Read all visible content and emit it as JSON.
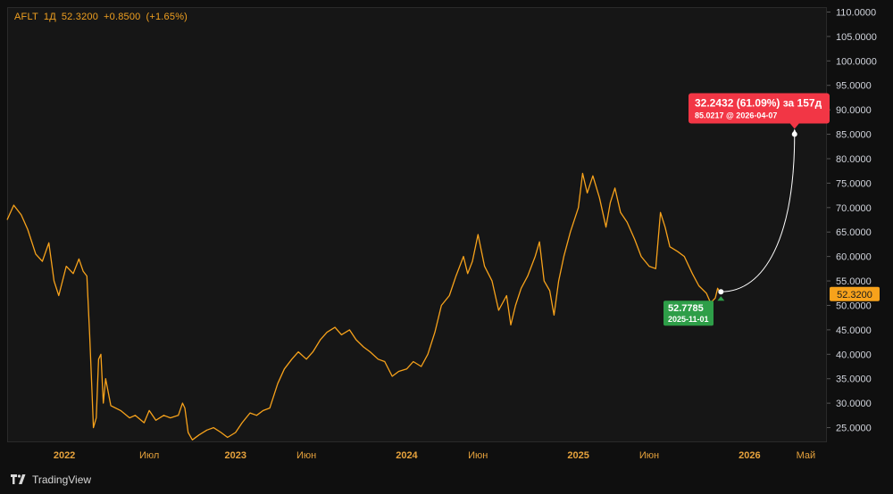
{
  "legend": {
    "symbol": "AFLT",
    "interval": "1Д",
    "last": "52.3200",
    "change": "+0.8500",
    "change_pct": "(+1.65%)"
  },
  "footer": {
    "brand": "TradingView"
  },
  "colors": {
    "background": "#161616",
    "price_line": "#f7a21b",
    "axis_text": "#d1d4dc",
    "time_text": "#e6a23c",
    "last_price_label": "#f7a21b",
    "start_label": "#2e9e48",
    "target_label": "#f23645",
    "projection_line": "#ffffff"
  },
  "chart_data": {
    "type": "line",
    "title": "",
    "series": [
      {
        "name": "AFLT",
        "points": [
          [
            "2021-09-01",
            67.5
          ],
          [
            "2021-09-15",
            70.5
          ],
          [
            "2021-10-01",
            68.5
          ],
          [
            "2021-10-15",
            65.5
          ],
          [
            "2021-11-01",
            60.5
          ],
          [
            "2021-11-15",
            59.0
          ],
          [
            "2021-11-29",
            62.8
          ],
          [
            "2021-12-10",
            55.0
          ],
          [
            "2021-12-20",
            52.0
          ],
          [
            "2022-01-05",
            58.0
          ],
          [
            "2022-01-20",
            56.5
          ],
          [
            "2022-02-01",
            59.5
          ],
          [
            "2022-02-10",
            57.0
          ],
          [
            "2022-02-18",
            56.0
          ],
          [
            "2022-02-24",
            44.0
          ],
          [
            "2022-03-01",
            32.0
          ],
          [
            "2022-03-04",
            25.0
          ],
          [
            "2022-03-10",
            27.0
          ],
          [
            "2022-03-15",
            39.0
          ],
          [
            "2022-03-20",
            40.0
          ],
          [
            "2022-03-25",
            30.0
          ],
          [
            "2022-03-30",
            35.0
          ],
          [
            "2022-04-10",
            29.5
          ],
          [
            "2022-05-01",
            28.5
          ],
          [
            "2022-05-20",
            27.0
          ],
          [
            "2022-06-01",
            27.5
          ],
          [
            "2022-06-20",
            26.0
          ],
          [
            "2022-07-01",
            28.5
          ],
          [
            "2022-07-15",
            26.5
          ],
          [
            "2022-08-01",
            27.5
          ],
          [
            "2022-08-15",
            27.0
          ],
          [
            "2022-09-01",
            27.5
          ],
          [
            "2022-09-10",
            30.0
          ],
          [
            "2022-09-15",
            29.0
          ],
          [
            "2022-09-22",
            24.0
          ],
          [
            "2022-10-01",
            22.5
          ],
          [
            "2022-10-15",
            23.5
          ],
          [
            "2022-11-01",
            24.5
          ],
          [
            "2022-11-15",
            25.0
          ],
          [
            "2022-12-01",
            24.0
          ],
          [
            "2022-12-15",
            23.0
          ],
          [
            "2023-01-01",
            24.0
          ],
          [
            "2023-01-15",
            26.0
          ],
          [
            "2023-02-01",
            28.0
          ],
          [
            "2023-02-15",
            27.5
          ],
          [
            "2023-03-01",
            28.5
          ],
          [
            "2023-03-15",
            29.0
          ],
          [
            "2023-04-01",
            34.0
          ],
          [
            "2023-04-15",
            37.0
          ],
          [
            "2023-05-01",
            39.0
          ],
          [
            "2023-05-15",
            40.5
          ],
          [
            "2023-06-01",
            39.0
          ],
          [
            "2023-06-15",
            40.5
          ],
          [
            "2023-07-01",
            43.0
          ],
          [
            "2023-07-15",
            44.5
          ],
          [
            "2023-08-01",
            45.5
          ],
          [
            "2023-08-15",
            44.0
          ],
          [
            "2023-09-01",
            45.0
          ],
          [
            "2023-09-15",
            43.0
          ],
          [
            "2023-10-01",
            41.5
          ],
          [
            "2023-10-15",
            40.5
          ],
          [
            "2023-11-01",
            39.0
          ],
          [
            "2023-11-15",
            38.5
          ],
          [
            "2023-12-01",
            35.5
          ],
          [
            "2023-12-15",
            36.5
          ],
          [
            "2024-01-01",
            37.0
          ],
          [
            "2024-01-15",
            38.5
          ],
          [
            "2024-02-01",
            37.5
          ],
          [
            "2024-02-15",
            40.0
          ],
          [
            "2024-03-01",
            44.5
          ],
          [
            "2024-03-15",
            50.0
          ],
          [
            "2024-04-01",
            52.0
          ],
          [
            "2024-04-15",
            56.0
          ],
          [
            "2024-05-01",
            60.0
          ],
          [
            "2024-05-10",
            56.5
          ],
          [
            "2024-05-20",
            59.0
          ],
          [
            "2024-06-01",
            64.5
          ],
          [
            "2024-06-15",
            58.0
          ],
          [
            "2024-07-01",
            55.0
          ],
          [
            "2024-07-15",
            49.0
          ],
          [
            "2024-08-01",
            52.0
          ],
          [
            "2024-08-10",
            46.0
          ],
          [
            "2024-08-20",
            50.0
          ],
          [
            "2024-09-01",
            53.5
          ],
          [
            "2024-09-15",
            56.0
          ],
          [
            "2024-10-01",
            60.0
          ],
          [
            "2024-10-10",
            63.0
          ],
          [
            "2024-10-20",
            55.0
          ],
          [
            "2024-11-01",
            53.0
          ],
          [
            "2024-11-10",
            48.0
          ],
          [
            "2024-11-20",
            55.0
          ],
          [
            "2024-12-01",
            60.0
          ],
          [
            "2024-12-15",
            65.0
          ],
          [
            "2025-01-01",
            70.0
          ],
          [
            "2025-01-10",
            77.0
          ],
          [
            "2025-01-20",
            73.0
          ],
          [
            "2025-02-01",
            76.5
          ],
          [
            "2025-02-15",
            72.0
          ],
          [
            "2025-03-01",
            66.0
          ],
          [
            "2025-03-10",
            71.0
          ],
          [
            "2025-03-20",
            74.0
          ],
          [
            "2025-04-01",
            69.0
          ],
          [
            "2025-04-15",
            67.0
          ],
          [
            "2025-05-01",
            63.5
          ],
          [
            "2025-05-15",
            60.0
          ],
          [
            "2025-06-01",
            58.0
          ],
          [
            "2025-06-15",
            57.5
          ],
          [
            "2025-06-25",
            69.0
          ],
          [
            "2025-07-05",
            66.0
          ],
          [
            "2025-07-15",
            62.0
          ],
          [
            "2025-08-01",
            61.0
          ],
          [
            "2025-08-15",
            60.0
          ],
          [
            "2025-09-01",
            56.5
          ],
          [
            "2025-09-15",
            54.0
          ],
          [
            "2025-10-01",
            52.5
          ],
          [
            "2025-10-10",
            50.5
          ],
          [
            "2025-10-20",
            51.5
          ],
          [
            "2025-10-25",
            53.5
          ],
          [
            "2025-11-01",
            52.32
          ]
        ]
      }
    ],
    "xlim": [
      "2021-09-01",
      "2026-06-15"
    ],
    "ylim": [
      22.0,
      111.0
    ],
    "y_tick_labels": [
      "25.0000",
      "30.0000",
      "35.0000",
      "40.0000",
      "45.0000",
      "50.0000",
      "55.0000",
      "60.0000",
      "65.0000",
      "70.0000",
      "75.0000",
      "80.0000",
      "85.0000",
      "90.0000",
      "95.0000",
      "100.0000",
      "105.0000",
      "110.0000"
    ],
    "y_ticks": [
      25,
      30,
      35,
      40,
      45,
      50,
      55,
      60,
      65,
      70,
      75,
      80,
      85,
      90,
      95,
      100,
      105,
      110
    ],
    "x_tick_labels": [
      {
        "label": "2022",
        "date": "2022-01-01",
        "bold": true
      },
      {
        "label": "Июл",
        "date": "2022-07-01",
        "bold": false
      },
      {
        "label": "2023",
        "date": "2023-01-01",
        "bold": true
      },
      {
        "label": "Июн",
        "date": "2023-06-01",
        "bold": false
      },
      {
        "label": "2024",
        "date": "2024-01-01",
        "bold": true
      },
      {
        "label": "Июн",
        "date": "2024-06-01",
        "bold": false
      },
      {
        "label": "2025",
        "date": "2025-01-01",
        "bold": true
      },
      {
        "label": "Июн",
        "date": "2025-06-01",
        "bold": false
      },
      {
        "label": "2026",
        "date": "2026-01-01",
        "bold": true
      },
      {
        "label": "Май",
        "date": "2026-05-01",
        "bold": false
      }
    ],
    "last_price": {
      "value": 52.32,
      "label": "52.3200"
    },
    "projection": {
      "start": {
        "date": "2025-11-01",
        "value": 52.7785,
        "label_value": "52.7785",
        "label_date": "2025-11-01"
      },
      "end": {
        "date": "2026-04-07",
        "value": 85.0217,
        "label_main": "32.2432 (61.09%) за 157д",
        "label_sub": "85.0217 @ 2026-04-07"
      }
    },
    "grid": false,
    "legend_position": "top-left"
  }
}
